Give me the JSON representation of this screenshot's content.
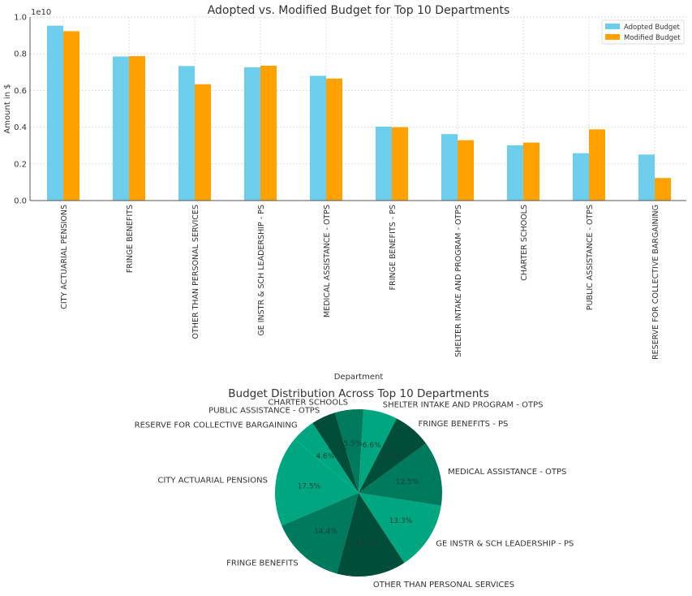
{
  "chart_data": [
    {
      "type": "bar",
      "title": "Adopted vs. Modified Budget for Top 10 Departments",
      "xlabel": "Department",
      "ylabel": "Amount in $",
      "y_offset_label": "1e10",
      "ylim": [
        0,
        10000000000
      ],
      "yticks": [
        "0.0",
        "0.2",
        "0.4",
        "0.6",
        "0.8",
        "1.0"
      ],
      "grid": true,
      "legend_position": "top-right",
      "categories": [
        "CITY ACTUARIAL PENSIONS",
        "FRINGE BENEFITS",
        "OTHER THAN PERSONAL SERVICES",
        "GE INSTR & SCH LEADERSHIP - PS",
        "MEDICAL ASSISTANCE - OTPS",
        "FRINGE BENEFITS - PS",
        "SHELTER INTAKE AND PROGRAM - OTPS",
        "CHARTER SCHOOLS",
        "PUBLIC ASSISTANCE - OTPS",
        "RESERVE FOR COLLECTIVE BARGAINING"
      ],
      "series": [
        {
          "name": "Adopted Budget",
          "color": "#6ccdec",
          "values": [
            9530000000,
            7850000000,
            7330000000,
            7260000000,
            6800000000,
            4030000000,
            3620000000,
            3010000000,
            2580000000,
            2510000000
          ]
        },
        {
          "name": "Modified Budget",
          "color": "#ffa200",
          "values": [
            9230000000,
            7870000000,
            6340000000,
            7350000000,
            6650000000,
            4000000000,
            3290000000,
            3160000000,
            3880000000,
            1230000000
          ]
        }
      ]
    },
    {
      "type": "pie",
      "title": "Budget Distribution Across Top 10 Departments",
      "start_angle_deg": 140,
      "labels": [
        "CITY ACTUARIAL PENSIONS",
        "FRINGE BENEFITS",
        "OTHER THAN PERSONAL SERVICES",
        "GE INSTR & SCH LEADERSHIP - PS",
        "MEDICAL ASSISTANCE - OTPS",
        "FRINGE BENEFITS - PS",
        "SHELTER INTAKE AND PROGRAM - OTPS",
        "CHARTER SCHOOLS",
        "PUBLIC ASSISTANCE - OTPS",
        "RESERVE FOR COLLECTIVE BARGAINING"
      ],
      "values": [
        17.5,
        14.4,
        13.4,
        13.3,
        12.5,
        7.4,
        6.6,
        5.5,
        4.7,
        4.6
      ],
      "pct_labels": [
        "17.5%",
        "14.4%",
        "13.4%",
        "13.3%",
        "12.5%",
        "7.4%",
        "6.6%",
        "5.5%",
        "4.7%",
        "4.6%"
      ],
      "colors": [
        "#00a680",
        "#007a5c",
        "#004d3a",
        "#00a680",
        "#007a5c",
        "#004d3a",
        "#00a680",
        "#007a5c",
        "#004d3a",
        "#00a680"
      ]
    }
  ]
}
